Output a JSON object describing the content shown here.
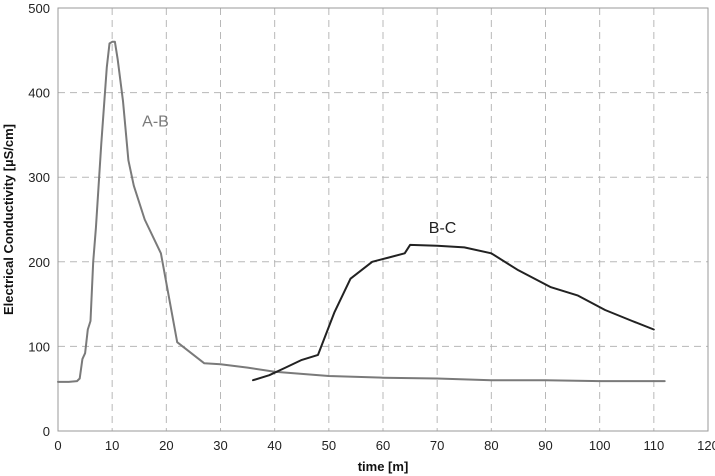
{
  "chart_data": {
    "type": "line",
    "title": "",
    "xlabel": "time [m]",
    "ylabel": "Electrical Conductivity [µS/cm]",
    "xlim": [
      0,
      120
    ],
    "ylim": [
      0,
      500
    ],
    "xticks": [
      0,
      10,
      20,
      30,
      40,
      50,
      60,
      70,
      80,
      90,
      100,
      110,
      120
    ],
    "yticks": [
      0,
      100,
      200,
      300,
      400,
      500
    ],
    "grid": {
      "x": true,
      "y": true,
      "style": "dashed"
    },
    "legend": "none",
    "series": [
      {
        "name": "A-B",
        "color": "#7a7a7a",
        "points": [
          [
            0,
            58
          ],
          [
            2,
            58
          ],
          [
            3.5,
            59
          ],
          [
            4,
            62
          ],
          [
            4.5,
            85
          ],
          [
            5,
            92
          ],
          [
            5.5,
            120
          ],
          [
            6,
            130
          ],
          [
            6.5,
            200
          ],
          [
            7,
            240
          ],
          [
            8,
            340
          ],
          [
            9,
            430
          ],
          [
            9.5,
            458
          ],
          [
            10,
            460
          ],
          [
            10.5,
            460
          ],
          [
            11,
            440
          ],
          [
            12,
            390
          ],
          [
            13,
            320
          ],
          [
            14,
            290
          ],
          [
            16,
            250
          ],
          [
            19,
            210
          ],
          [
            22,
            105
          ],
          [
            27,
            80
          ],
          [
            30,
            79
          ],
          [
            35,
            75
          ],
          [
            40,
            70
          ],
          [
            50,
            65
          ],
          [
            60,
            63
          ],
          [
            70,
            62
          ],
          [
            80,
            60
          ],
          [
            90,
            60
          ],
          [
            100,
            59
          ],
          [
            112,
            59
          ]
        ]
      },
      {
        "name": "B-C",
        "color": "#222222",
        "points": [
          [
            36,
            60
          ],
          [
            39,
            66
          ],
          [
            42,
            75
          ],
          [
            45,
            84
          ],
          [
            48,
            90
          ],
          [
            51,
            140
          ],
          [
            54,
            180
          ],
          [
            58,
            200
          ],
          [
            61,
            205
          ],
          [
            64,
            210
          ],
          [
            65,
            220
          ],
          [
            70,
            219
          ],
          [
            75,
            217
          ],
          [
            80,
            210
          ],
          [
            85,
            190
          ],
          [
            91,
            170
          ],
          [
            96,
            160
          ],
          [
            101,
            143
          ],
          [
            106,
            130
          ],
          [
            110,
            120
          ]
        ]
      }
    ],
    "annotations": [
      {
        "text": "A-B",
        "x": 18,
        "y": 360,
        "color": "#7a7a7a"
      },
      {
        "text": "B-C",
        "x": 71,
        "y": 234,
        "color": "#222222"
      }
    ]
  }
}
